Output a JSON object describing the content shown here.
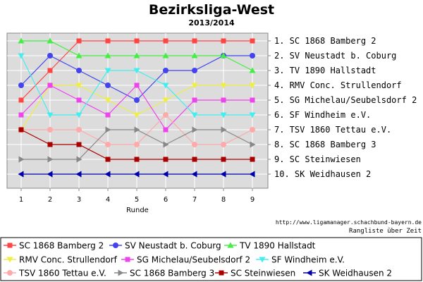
{
  "title": "Bezirksliga-West",
  "subtitle": "2013/2014",
  "source_url": "http://www.ligamanager.schachbund-bayern.de",
  "caption": "Rangliste über Zeit",
  "colors": {
    "plot_bg": "#dcdcdc",
    "grid": "#ffffff"
  },
  "chart_data": {
    "type": "line",
    "title": "Bezirksliga-West",
    "subtitle": "2013/2014",
    "xlabel": "Runde",
    "ylabel": "",
    "x": [
      1,
      2,
      3,
      4,
      5,
      6,
      7,
      8,
      9
    ],
    "xlim": [
      1,
      9
    ],
    "ylim": [
      10,
      1
    ],
    "y_reversed": true,
    "grid": true,
    "legend_position": "bottom",
    "right_tick_labels": [
      "1. SC 1868 Bamberg 2",
      "2. SV Neustadt b. Coburg",
      "3. TV 1890 Hallstadt",
      "4. RMV Conc. Strullendorf",
      "5. SG Michelau/Seubelsdorf 2",
      "6. SF Windheim e.V.",
      "7. TSV 1860 Tettau e.V.",
      "8. SC 1868 Bamberg 3",
      "9. SC Steinwiesen",
      "10. SK Weidhausen 2"
    ],
    "series": [
      {
        "name": "SC 1868 Bamberg 2",
        "color": "#ff4444",
        "marker": "square",
        "values": [
          5,
          3,
          1,
          1,
          1,
          1,
          1,
          1,
          1
        ]
      },
      {
        "name": "SV Neustadt b. Coburg",
        "color": "#4444ee",
        "marker": "circle",
        "values": [
          4,
          2,
          3,
          4,
          5,
          3,
          3,
          2,
          2
        ]
      },
      {
        "name": "TV 1890 Hallstadt",
        "color": "#44ee44",
        "marker": "triangle-up",
        "values": [
          1,
          1,
          2,
          2,
          2,
          2,
          2,
          2,
          3
        ]
      },
      {
        "name": "RMV Conc. Strullendorf",
        "color": "#eeee44",
        "marker": "triangle-down",
        "values": [
          7,
          4,
          4,
          5,
          6,
          5,
          4,
          4,
          4
        ]
      },
      {
        "name": "SG Michelau/Seubelsdorf 2",
        "color": "#ee44ee",
        "marker": "square",
        "values": [
          6,
          4,
          5,
          6,
          4,
          7,
          5,
          5,
          5
        ]
      },
      {
        "name": "SF Windheim e.V.",
        "color": "#44eeee",
        "marker": "triangle-down",
        "values": [
          2,
          6,
          6,
          3,
          3,
          4,
          6,
          6,
          6
        ]
      },
      {
        "name": "TSV 1860 Tettau e.V.",
        "color": "#ffaaaa",
        "marker": "circle",
        "values": [
          7,
          7,
          7,
          8,
          8,
          6,
          8,
          8,
          7
        ]
      },
      {
        "name": "SC 1868 Bamberg 3",
        "color": "#888888",
        "marker": "triangle-right",
        "values": [
          9,
          9,
          9,
          7,
          7,
          8,
          7,
          7,
          8
        ]
      },
      {
        "name": "SC Steinwiesen",
        "color": "#aa0000",
        "marker": "square",
        "values": [
          7,
          8,
          8,
          9,
          9,
          9,
          9,
          9,
          9
        ]
      },
      {
        "name": "SK Weidhausen 2",
        "color": "#0000aa",
        "marker": "triangle-left",
        "values": [
          10,
          10,
          10,
          10,
          10,
          10,
          10,
          10,
          10
        ]
      }
    ]
  }
}
